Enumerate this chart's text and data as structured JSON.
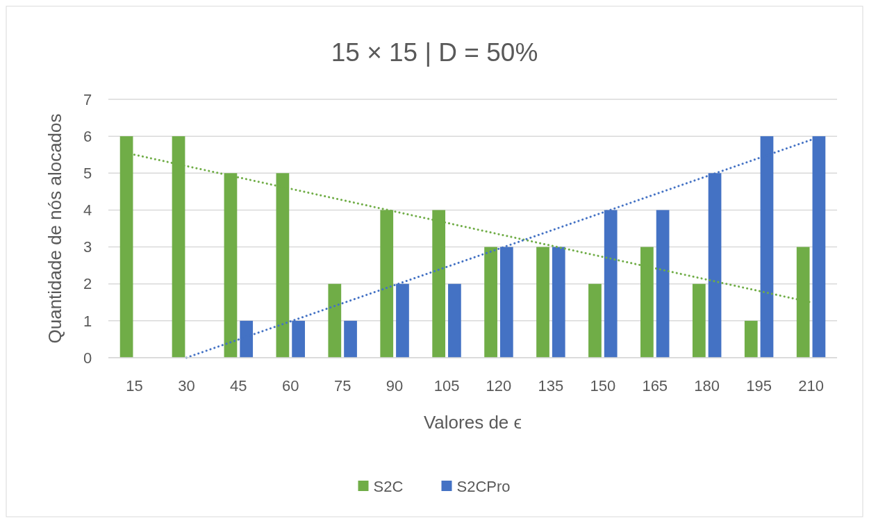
{
  "chart_data": {
    "type": "bar",
    "title": "15 × 15 | D = 50%",
    "xlabel": "Valores de ϵ",
    "ylabel": "Quantidade de nós alocados",
    "categories": [
      "15",
      "30",
      "45",
      "60",
      "75",
      "90",
      "105",
      "120",
      "135",
      "150",
      "165",
      "180",
      "195",
      "210"
    ],
    "series": [
      {
        "name": "S2C",
        "color": "#70ad47",
        "values": [
          6,
          6,
          5,
          5,
          2,
          4,
          4,
          3,
          3,
          2,
          3,
          2,
          1,
          3
        ]
      },
      {
        "name": "S2CPro",
        "color": "#4472c4",
        "values": [
          0,
          0,
          1,
          1,
          1,
          2,
          2,
          3,
          3,
          4,
          4,
          5,
          6,
          6
        ]
      },
      {
        "type": "line",
        "color": "#70ad47",
        "x": [
          "15",
          "210"
        ],
        "values": [
          5.5,
          1.5
        ],
        "line_style": "dotted"
      },
      {
        "type": "line",
        "color": "#4472c4",
        "x": [
          "30",
          "210"
        ],
        "values": [
          0,
          5.9
        ],
        "line_style": "dotted"
      }
    ],
    "ylim": [
      0,
      7
    ],
    "yticks": [
      0,
      1,
      2,
      3,
      4,
      5,
      6,
      7
    ],
    "grid": "y",
    "legend": "bottom"
  }
}
